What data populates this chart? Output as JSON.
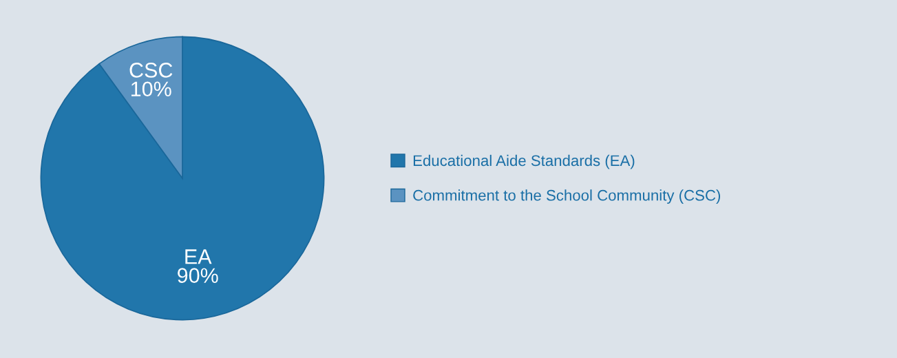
{
  "chart_data": {
    "type": "pie",
    "categories": [
      "Educational Aide Standards (EA)",
      "Commitment to the School Community (CSC)"
    ],
    "values": [
      90,
      10
    ],
    "value_labels": [
      "EA\n90%",
      "CSC\n10%"
    ],
    "colors": [
      "#2176ab",
      "#5b93c1"
    ],
    "legend": "right"
  }
}
